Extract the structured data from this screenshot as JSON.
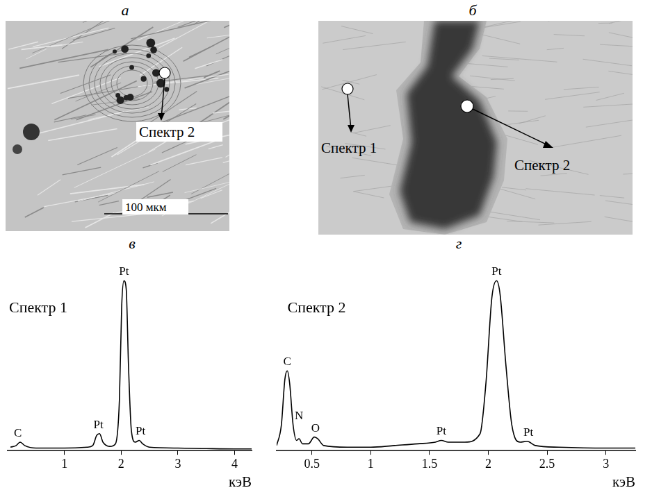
{
  "images": [
    {
      "panel": "а",
      "labels": [
        "Спектр 2"
      ],
      "scale_bar": "100 мкм"
    },
    {
      "panel": "б",
      "labels": [
        "Спектр 1",
        "Спектр 2"
      ]
    }
  ],
  "chart_data": [
    {
      "panel": "в",
      "type": "line",
      "title": "Спектр 1",
      "xlabel": "кэВ",
      "color": "#000000",
      "grid": false,
      "tick_labels": "x",
      "xlim": [
        0,
        4.3
      ],
      "xticks": [
        1,
        2,
        3,
        4
      ],
      "ylim": [
        0,
        110
      ],
      "x": [
        0.05,
        0.15,
        0.22,
        0.3,
        0.5,
        1.0,
        1.4,
        1.5,
        1.57,
        1.62,
        1.68,
        1.8,
        1.9,
        1.97,
        2.01,
        2.05,
        2.09,
        2.13,
        2.18,
        2.25,
        2.32,
        2.38,
        2.5,
        3.0,
        3.5,
        4.0,
        4.3
      ],
      "values": [
        2,
        3,
        5,
        3,
        1.5,
        1.5,
        2,
        3,
        9,
        10,
        5,
        2.5,
        4,
        30,
        85,
        100,
        95,
        50,
        12,
        5,
        6,
        4,
        2,
        1.5,
        1.2,
        1,
        1
      ],
      "annotations": [
        {
          "text": "C",
          "x": 0.18
        },
        {
          "text": "Pt",
          "x": 1.6
        },
        {
          "text": "Pt",
          "x": 2.05
        },
        {
          "text": "Pt",
          "x": 2.34
        }
      ]
    },
    {
      "panel": "г",
      "type": "line",
      "title": "Спектр 2",
      "xlabel": "кэВ",
      "color": "#000000",
      "grid": false,
      "tick_labels": "x",
      "xlim": [
        0.2,
        3.25
      ],
      "xticks": [
        0.5,
        1,
        1.5,
        2,
        2.5,
        3
      ],
      "ylim": [
        0,
        110
      ],
      "x": [
        0.2,
        0.24,
        0.27,
        0.29,
        0.31,
        0.34,
        0.37,
        0.39,
        0.42,
        0.47,
        0.52,
        0.55,
        0.6,
        0.8,
        1.0,
        1.2,
        1.4,
        1.55,
        1.6,
        1.66,
        1.8,
        1.93,
        1.98,
        2.03,
        2.07,
        2.1,
        2.15,
        2.2,
        2.27,
        2.33,
        2.4,
        2.6,
        3.0,
        3.25
      ],
      "values": [
        3,
        15,
        42,
        47,
        40,
        15,
        6,
        7,
        4,
        4,
        8,
        7,
        3,
        2,
        2,
        3,
        4,
        5,
        6,
        5,
        5,
        10,
        40,
        90,
        100,
        92,
        50,
        15,
        5,
        5.5,
        3,
        2,
        1.5,
        1.5
      ],
      "annotations": [
        {
          "text": "C",
          "x": 0.29
        },
        {
          "text": "N",
          "x": 0.39
        },
        {
          "text": "O",
          "x": 0.53
        },
        {
          "text": "Pt",
          "x": 1.6
        },
        {
          "text": "Pt",
          "x": 2.07
        },
        {
          "text": "Pt",
          "x": 2.34
        }
      ]
    }
  ]
}
